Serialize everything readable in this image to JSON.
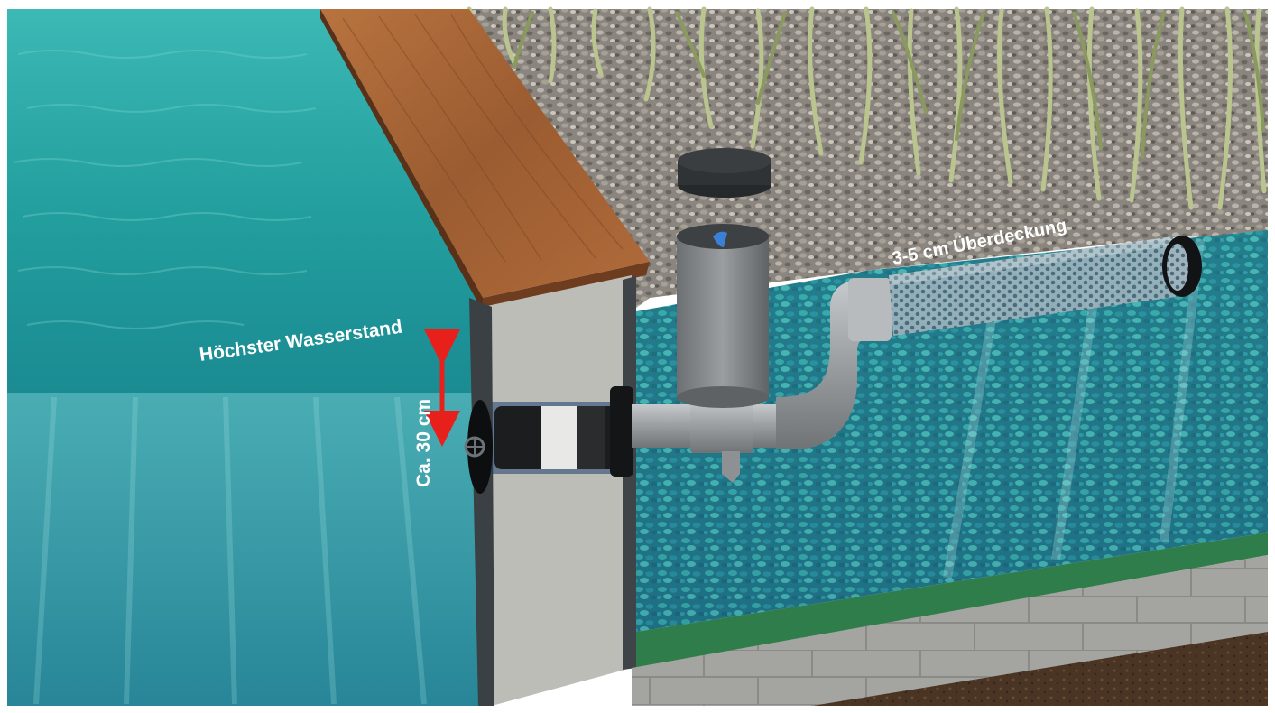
{
  "labels": {
    "max_water_level": "Höchster Wasserstand",
    "depth": "Ca. 30 cm",
    "cover": "3-5 cm Überdeckung"
  },
  "colors": {
    "pond_water": "#2aa9a4",
    "filter_water": "#2f8e95",
    "pipe_grey": "#9a9ea2",
    "wood": "#a8663a",
    "concrete": "#9c9c98",
    "gravel": "#8c8780",
    "liner_green": "#2e7d4a",
    "arrow_red": "#e8201c",
    "soil": "#4a3424"
  },
  "icons": {
    "skimmer": "skimmer-cylinder-icon",
    "lid": "skimmer-lid-icon",
    "inlet": "inlet-grille-icon",
    "drain": "perforated-drain-pipe-icon"
  }
}
